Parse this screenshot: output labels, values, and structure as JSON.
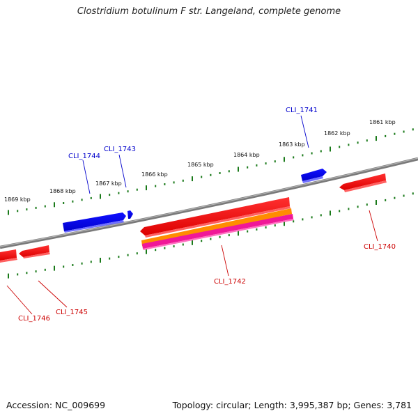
{
  "title": "Clostridium botulinum F str. Langeland, complete genome",
  "footer": {
    "accession": "Accession: NC_009699",
    "topology": "Topology: circular; Length: 3,995,387 bp; Genes: 3,781"
  },
  "colors": {
    "backbone": "#808080",
    "forward_gene": "#0000dd",
    "reverse_gene": "#ee0000",
    "orange_feature": "#ff8800",
    "pink_feature": "#ee1199",
    "ticks": "#1a7a1a",
    "forward_label": "#0000cc",
    "reverse_label": "#cc0000"
  },
  "kbp_labels": [
    "1869 kbp",
    "1868 kbp",
    "1867 kbp",
    "1866 kbp",
    "1865 kbp",
    "1864 kbp",
    "1863 kbp",
    "1862 kbp",
    "1861 kbp"
  ],
  "gene_labels": {
    "cli1741": "CLI_1741",
    "cli1743": "CLI_1743",
    "cli1744": "CLI_1744",
    "cli1740": "CLI_1740",
    "cli1742": "CLI_1742",
    "cli1745": "CLI_1745",
    "cli1746": "CLI_1746"
  }
}
